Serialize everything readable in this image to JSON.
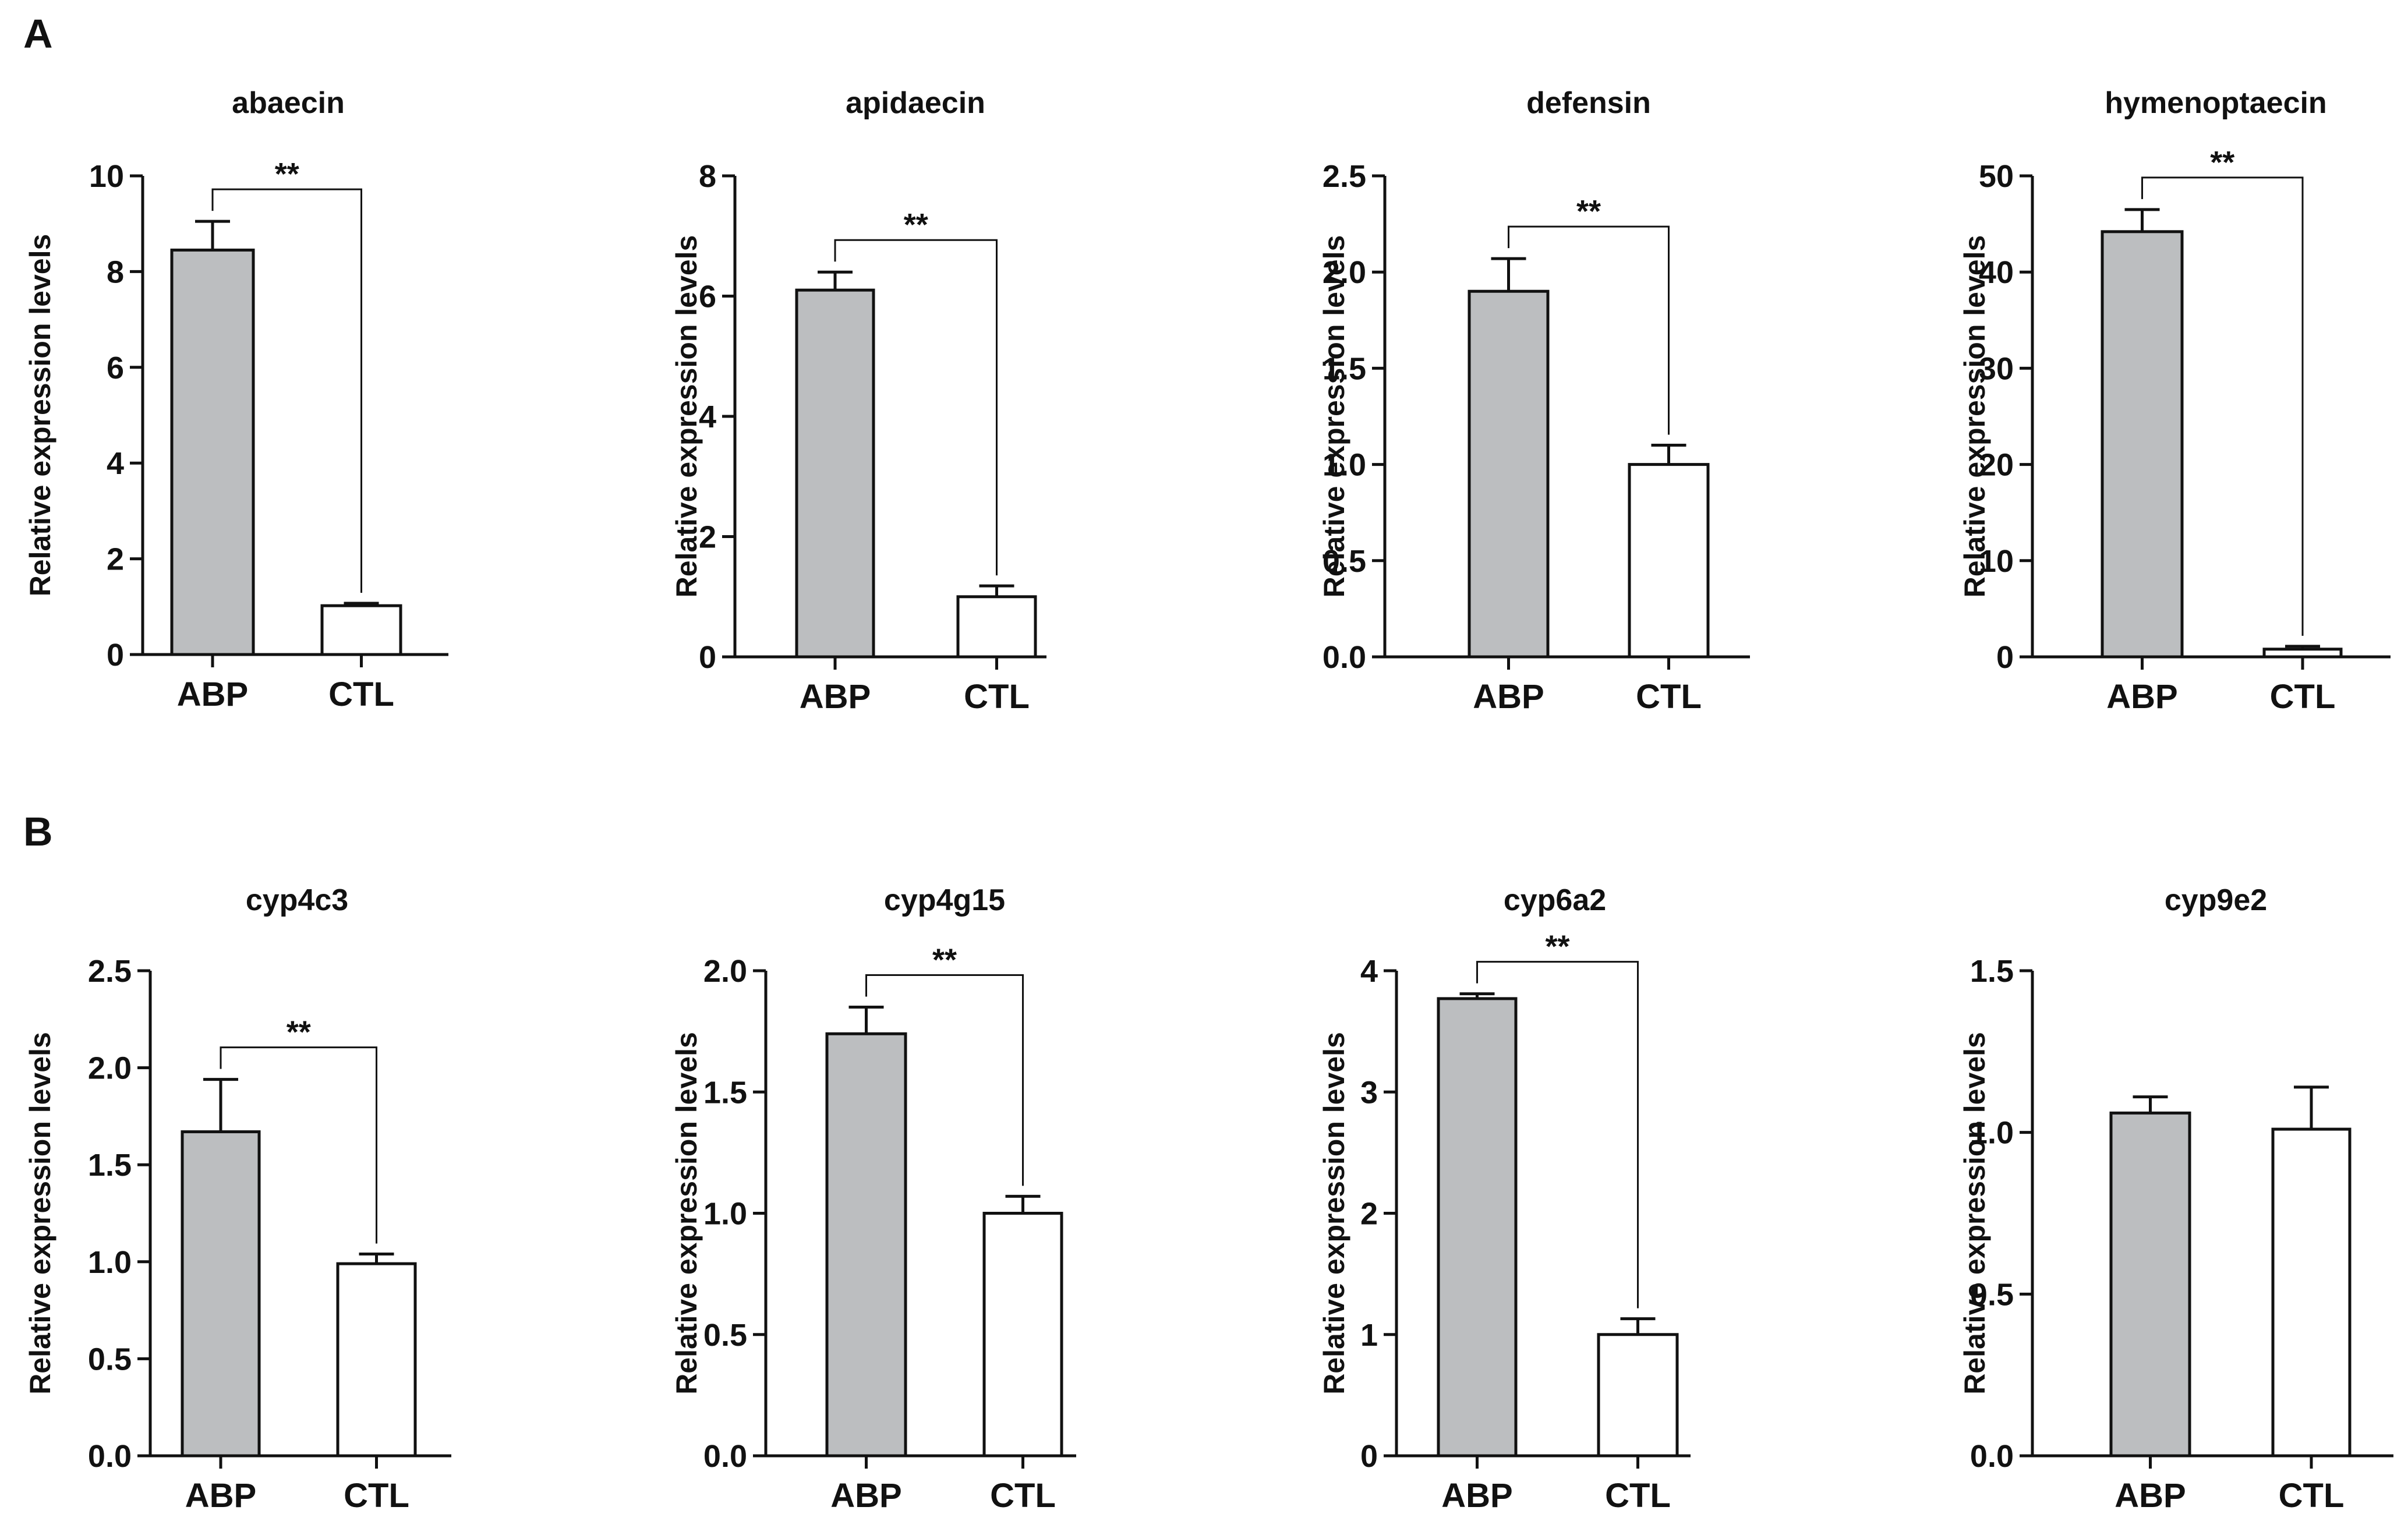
{
  "panels": [
    {
      "letter": "A"
    },
    {
      "letter": "B"
    }
  ],
  "chart_data": [
    {
      "type": "bar",
      "panel": "A",
      "title": "abaecin",
      "ylabel": "Relative expression levels",
      "categories": [
        "ABP",
        "CTL"
      ],
      "values": [
        8.45,
        1.02
      ],
      "errors": [
        0.6,
        0.05
      ],
      "ylim": [
        0,
        10
      ],
      "yticks": [
        0,
        2,
        4,
        6,
        8,
        10
      ],
      "ytick_labels": [
        "0",
        "2",
        "4",
        "6",
        "8",
        "10"
      ],
      "significance": "**",
      "bar_colors": [
        "#bcbec0",
        "#ffffff"
      ]
    },
    {
      "type": "bar",
      "panel": "A",
      "title": "apidaecin",
      "ylabel": "Relative expression levels",
      "categories": [
        "ABP",
        "CTL"
      ],
      "values": [
        6.1,
        1.0
      ],
      "errors": [
        0.3,
        0.18
      ],
      "ylim": [
        0,
        8
      ],
      "yticks": [
        0,
        2,
        4,
        6,
        8
      ],
      "ytick_labels": [
        "0",
        "2",
        "4",
        "6",
        "8"
      ],
      "significance": "**",
      "bar_colors": [
        "#bcbec0",
        "#ffffff"
      ]
    },
    {
      "type": "bar",
      "panel": "A",
      "title": "defensin",
      "ylabel": "Relative expression levels",
      "categories": [
        "ABP",
        "CTL"
      ],
      "values": [
        1.9,
        1.0
      ],
      "errors": [
        0.17,
        0.1
      ],
      "ylim": [
        0,
        2.5
      ],
      "yticks": [
        0,
        0.5,
        1,
        1.5,
        2,
        2.5
      ],
      "ytick_labels": [
        "0.0",
        "0.5",
        "1.0",
        "1.5",
        "2.0",
        "2.5"
      ],
      "significance": "**",
      "bar_colors": [
        "#bcbec0",
        "#ffffff"
      ]
    },
    {
      "type": "bar",
      "panel": "A",
      "title": "hymenoptaecin",
      "ylabel": "Relative expression levels",
      "categories": [
        "ABP",
        "CTL"
      ],
      "values": [
        44.2,
        0.8
      ],
      "errors": [
        2.3,
        0.3
      ],
      "ylim": [
        0,
        50
      ],
      "yticks": [
        0,
        10,
        20,
        30,
        40,
        50
      ],
      "ytick_labels": [
        "0",
        "10",
        "20",
        "30",
        "40",
        "50"
      ],
      "significance": "**",
      "bar_colors": [
        "#bcbec0",
        "#ffffff"
      ]
    },
    {
      "type": "bar",
      "panel": "B",
      "title": "cyp4c3",
      "ylabel": "Relative expression levels",
      "categories": [
        "ABP",
        "CTL"
      ],
      "values": [
        1.67,
        0.99
      ],
      "errors": [
        0.27,
        0.05
      ],
      "ylim": [
        0,
        2.5
      ],
      "yticks": [
        0,
        0.5,
        1,
        1.5,
        2,
        2.5
      ],
      "ytick_labels": [
        "0.0",
        "0.5",
        "1.0",
        "1.5",
        "2.0",
        "2.5"
      ],
      "significance": "**",
      "bar_colors": [
        "#bcbec0",
        "#ffffff"
      ]
    },
    {
      "type": "bar",
      "panel": "B",
      "title": "cyp4g15",
      "ylabel": "Relative expression levels",
      "categories": [
        "ABP",
        "CTL"
      ],
      "values": [
        1.74,
        1.0
      ],
      "errors": [
        0.11,
        0.07
      ],
      "ylim": [
        0,
        2
      ],
      "yticks": [
        0,
        0.5,
        1,
        1.5,
        2
      ],
      "ytick_labels": [
        "0.0",
        "0.5",
        "1.0",
        "1.5",
        "2.0"
      ],
      "significance": "**",
      "bar_colors": [
        "#bcbec0",
        "#ffffff"
      ]
    },
    {
      "type": "bar",
      "panel": "B",
      "title": "cyp6a2",
      "ylabel": "Relative expression levels",
      "categories": [
        "ABP",
        "CTL"
      ],
      "values": [
        3.77,
        1.0
      ],
      "errors": [
        0.04,
        0.13
      ],
      "ylim": [
        0,
        4
      ],
      "yticks": [
        0,
        1,
        2,
        3,
        4
      ],
      "ytick_labels": [
        "0",
        "1",
        "2",
        "3",
        "4"
      ],
      "significance": "**",
      "bar_colors": [
        "#bcbec0",
        "#ffffff"
      ]
    },
    {
      "type": "bar",
      "panel": "B",
      "title": "cyp9e2",
      "ylabel": "Relative expression levels",
      "categories": [
        "ABP",
        "CTL"
      ],
      "values": [
        1.06,
        1.01
      ],
      "errors": [
        0.05,
        0.13
      ],
      "ylim": [
        0,
        1.5
      ],
      "yticks": [
        0,
        0.5,
        1,
        1.5
      ],
      "ytick_labels": [
        "0.0",
        "0.5",
        "1.0",
        "1.5"
      ],
      "significance": "",
      "bar_colors": [
        "#bcbec0",
        "#ffffff"
      ]
    }
  ]
}
